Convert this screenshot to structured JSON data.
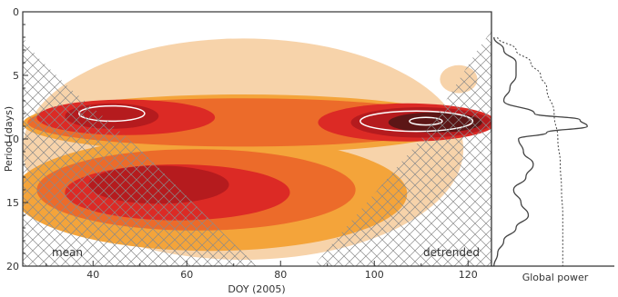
{
  "chart_data": [
    {
      "type": "heatmap",
      "xlabel": "DOY (2005)",
      "ylabel": "Period (days)",
      "xlim": [
        25,
        125
      ],
      "ylim": [
        0,
        20
      ],
      "y_axis_inverted": true,
      "xticks": [
        40,
        60,
        80,
        100,
        120
      ],
      "yticks": [
        0,
        5,
        10,
        15,
        20
      ],
      "annotations": [
        "mean",
        "detrended"
      ],
      "colors": {
        "level1": "#f7d3aa",
        "level2": "#f4a43a",
        "level3": "#ec6b2a",
        "level4": "#dc2a25",
        "level5": "#b51b1e",
        "level6": "#5c1616",
        "background": "#ffffff",
        "hatch": "#8a8a8a",
        "contour": "#ffffff"
      },
      "power_regions": [
        {
          "level": 1,
          "doy": 72,
          "period": 10.8,
          "rx": 47,
          "ry": 8.7
        },
        {
          "level": 1,
          "doy": 118,
          "period": 5.3,
          "rx": 4,
          "ry": 1.1
        },
        {
          "level": 2,
          "doy": 72,
          "period": 8.8,
          "rx": 47,
          "ry": 2.3
        },
        {
          "level": 2,
          "doy": 65,
          "period": 14.3,
          "rx": 42,
          "ry": 4.5
        },
        {
          "level": 3,
          "doy": 72,
          "period": 8.7,
          "rx": 46,
          "ry": 1.9
        },
        {
          "level": 3,
          "doy": 62,
          "period": 14.0,
          "rx": 34,
          "ry": 3.2
        },
        {
          "level": 4,
          "doy": 47,
          "period": 8.3,
          "rx": 19,
          "ry": 1.4
        },
        {
          "level": 4,
          "doy": 107,
          "period": 8.7,
          "rx": 19,
          "ry": 1.5
        },
        {
          "level": 4,
          "doy": 58,
          "period": 14.2,
          "rx": 24,
          "ry": 2.2
        },
        {
          "level": 5,
          "doy": 44,
          "period": 8.2,
          "rx": 10,
          "ry": 1.0
        },
        {
          "level": 5,
          "doy": 110,
          "period": 8.7,
          "rx": 15,
          "ry": 1.2
        },
        {
          "level": 5,
          "doy": 54,
          "period": 13.6,
          "rx": 15,
          "ry": 1.5
        },
        {
          "level": 6,
          "doy": 113,
          "period": 8.7,
          "rx": 10,
          "ry": 0.8
        }
      ],
      "significance_contours": [
        {
          "doy": 44,
          "period": 8.0,
          "rx": 7,
          "ry": 0.6
        },
        {
          "doy": 109,
          "period": 8.6,
          "rx": 12,
          "ry": 0.8
        },
        {
          "doy": 111,
          "period": 8.6,
          "rx": 3.5,
          "ry": 0.3
        }
      ],
      "cone_of_influence": [
        {
          "doy": 25,
          "period": 2.0
        },
        {
          "doy": 28,
          "period": 3.5
        },
        {
          "doy": 35,
          "period": 6.0
        },
        {
          "doy": 43,
          "period": 8.5
        },
        {
          "doy": 52,
          "period": 11.5
        },
        {
          "doy": 60,
          "period": 14.5
        },
        {
          "doy": 68,
          "period": 17.5
        },
        {
          "doy": 75,
          "period": 20.0
        },
        {
          "doy": 87,
          "period": 20.0
        },
        {
          "doy": 95,
          "period": 16.5
        },
        {
          "doy": 103,
          "period": 13.0
        },
        {
          "doy": 110,
          "period": 10.0
        },
        {
          "doy": 117,
          "period": 6.0
        },
        {
          "doy": 122,
          "period": 3.0
        },
        {
          "doy": 125,
          "period": 1.5
        }
      ]
    },
    {
      "type": "line",
      "xlabel": "Global power",
      "ylabel": "",
      "ylim": [
        0,
        20
      ],
      "x_relative_range": [
        0,
        1
      ],
      "series": [
        {
          "style": "solid",
          "period": [
            2,
            3,
            4,
            5,
            6,
            7,
            8,
            8.5,
            9,
            9.5,
            10,
            11,
            12,
            13,
            14,
            15,
            16,
            17,
            18,
            19,
            20
          ],
          "power": [
            0.02,
            0.1,
            0.2,
            0.2,
            0.15,
            0.1,
            0.35,
            0.72,
            0.78,
            0.45,
            0.22,
            0.26,
            0.34,
            0.28,
            0.18,
            0.24,
            0.3,
            0.2,
            0.1,
            0.05,
            0.02
          ]
        },
        {
          "style": "dashed",
          "period": [
            2,
            3,
            4,
            5,
            6,
            8,
            10,
            12,
            14,
            16,
            18,
            20
          ],
          "power": [
            0.05,
            0.2,
            0.32,
            0.4,
            0.45,
            0.51,
            0.54,
            0.56,
            0.57,
            0.58,
            0.58,
            0.58
          ]
        }
      ]
    }
  ]
}
